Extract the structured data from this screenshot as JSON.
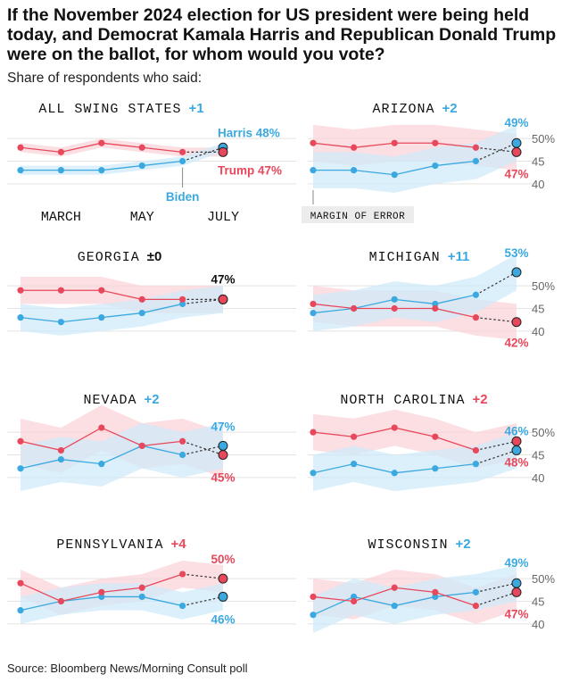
{
  "title": "If the November 2024 election for US president were being held today, and Democrat Kamala Harris and Republican Donald Trump were on the ballot, for whom would you vote?",
  "subtitle": "Share of respondents who said:",
  "source": "Source: Bloomberg News/Morning Consult poll",
  "colors": {
    "harris": "#3ba9e0",
    "trump": "#e8485c",
    "harris_band": "#cfeafa",
    "trump_band": "#fbd3d8",
    "grid": "#e3e3e3"
  },
  "chart_data": [
    {
      "type": "line",
      "title": "ALL SWING STATES",
      "diff": "+1",
      "diff_party": "harris",
      "x": [
        "",
        "MARCH",
        "",
        "MAY",
        "",
        "JULY"
      ],
      "ylim": [
        38,
        52
      ],
      "series": [
        {
          "name": "Harris",
          "values": [
            43,
            43,
            43,
            44,
            45,
            48
          ],
          "moe": [
            1,
            1,
            1,
            1,
            1,
            1
          ],
          "label": "Harris 48%"
        },
        {
          "name": "Trump",
          "values": [
            48,
            47,
            49,
            48,
            47,
            47
          ],
          "moe": [
            1,
            1,
            1,
            1,
            1,
            1
          ],
          "label": "Trump 47%"
        }
      ],
      "annotation": "Biden"
    },
    {
      "type": "line",
      "title": "ARIZONA",
      "diff": "+2",
      "diff_party": "harris",
      "ylim": [
        38,
        52
      ],
      "yticks": [
        "50%",
        "45",
        "40"
      ],
      "y_tick_values": [
        50,
        45,
        40
      ],
      "series": [
        {
          "name": "Harris",
          "values": [
            43,
            43,
            42,
            44,
            45,
            49
          ],
          "moe": [
            4,
            4,
            4,
            4,
            4,
            4
          ],
          "label": "49%"
        },
        {
          "name": "Trump",
          "values": [
            49,
            48,
            49,
            49,
            48,
            47
          ],
          "moe": [
            4,
            4,
            4,
            4,
            4,
            4
          ],
          "label": "47%"
        }
      ],
      "annotation": "MARGIN OF ERROR"
    },
    {
      "type": "line",
      "title": "GEORGIA",
      "diff": "±0",
      "diff_party": "none",
      "ylim": [
        38,
        52
      ],
      "series": [
        {
          "name": "Harris",
          "values": [
            43,
            42,
            43,
            44,
            46,
            47
          ],
          "moe": [
            3,
            3,
            3,
            3,
            3,
            3
          ],
          "label": ""
        },
        {
          "name": "Trump",
          "values": [
            49,
            49,
            49,
            47,
            47,
            47
          ],
          "moe": [
            3,
            3,
            3,
            3,
            3,
            3
          ],
          "label": "47%"
        }
      ]
    },
    {
      "type": "line",
      "title": "MICHIGAN",
      "diff": "+11",
      "diff_party": "harris",
      "ylim": [
        38,
        52
      ],
      "yticks": [
        "50%",
        "45",
        "40"
      ],
      "y_tick_values": [
        50,
        45,
        40
      ],
      "series": [
        {
          "name": "Harris",
          "values": [
            44,
            45,
            47,
            46,
            48,
            53
          ],
          "moe": [
            4,
            4,
            4,
            4,
            4,
            4
          ],
          "label": "53%"
        },
        {
          "name": "Trump",
          "values": [
            46,
            45,
            45,
            45,
            43,
            42
          ],
          "moe": [
            4,
            4,
            4,
            4,
            4,
            4
          ],
          "label": "42%"
        }
      ]
    },
    {
      "type": "line",
      "title": "NEVADA",
      "diff": "+2",
      "diff_party": "harris",
      "ylim": [
        38,
        52
      ],
      "series": [
        {
          "name": "Harris",
          "values": [
            42,
            44,
            43,
            47,
            45,
            47
          ],
          "moe": [
            5,
            5,
            5,
            5,
            5,
            5
          ],
          "label": "47%"
        },
        {
          "name": "Trump",
          "values": [
            48,
            46,
            51,
            47,
            48,
            45
          ],
          "moe": [
            5,
            5,
            5,
            5,
            5,
            5
          ],
          "label": "45%"
        }
      ]
    },
    {
      "type": "line",
      "title": "NORTH CAROLINA",
      "diff": "+2",
      "diff_party": "trump",
      "ylim": [
        38,
        52
      ],
      "yticks": [
        "50%",
        "45",
        "40"
      ],
      "y_tick_values": [
        50,
        45,
        40
      ],
      "series": [
        {
          "name": "Harris",
          "values": [
            41,
            43,
            41,
            42,
            43,
            46
          ],
          "moe": [
            4,
            4,
            4,
            4,
            4,
            4
          ],
          "label": "46%"
        },
        {
          "name": "Trump",
          "values": [
            50,
            49,
            51,
            49,
            46,
            48
          ],
          "moe": [
            4,
            4,
            4,
            4,
            4,
            4
          ],
          "label": "48%"
        }
      ]
    },
    {
      "type": "line",
      "title": "PENNSYLVANIA",
      "diff": "+4",
      "diff_party": "trump",
      "ylim": [
        38,
        52
      ],
      "series": [
        {
          "name": "Harris",
          "values": [
            43,
            45,
            46,
            46,
            44,
            46
          ],
          "moe": [
            3,
            3,
            3,
            3,
            3,
            3
          ],
          "label": "46%"
        },
        {
          "name": "Trump",
          "values": [
            49,
            45,
            47,
            48,
            51,
            50
          ],
          "moe": [
            3,
            3,
            3,
            3,
            3,
            3
          ],
          "label": "50%"
        }
      ]
    },
    {
      "type": "line",
      "title": "WISCONSIN",
      "diff": "+2",
      "diff_party": "harris",
      "ylim": [
        38,
        52
      ],
      "yticks": [
        "50%",
        "45",
        "40"
      ],
      "y_tick_values": [
        50,
        45,
        40
      ],
      "series": [
        {
          "name": "Harris",
          "values": [
            42,
            46,
            44,
            46,
            47,
            49
          ],
          "moe": [
            4,
            4,
            4,
            4,
            4,
            4
          ],
          "label": "49%"
        },
        {
          "name": "Trump",
          "values": [
            46,
            45,
            48,
            47,
            44,
            47
          ],
          "moe": [
            4,
            4,
            4,
            4,
            4,
            4
          ],
          "label": "47%"
        }
      ]
    }
  ]
}
